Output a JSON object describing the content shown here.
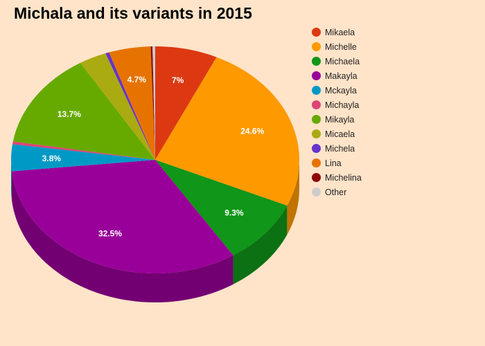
{
  "chart_data": {
    "type": "pie",
    "title": "Michala and its variants in 2015",
    "slices": [
      {
        "name": "Mikaela",
        "value": 7.0,
        "label": "7%",
        "color": "#DC3912",
        "side": "#A62B0E"
      },
      {
        "name": "Michelle",
        "value": 24.6,
        "label": "24.6%",
        "color": "#FF9900",
        "side": "#C07300"
      },
      {
        "name": "Michaela",
        "value": 9.3,
        "label": "9.3%",
        "color": "#109618",
        "side": "#0C7112"
      },
      {
        "name": "Makayla",
        "value": 32.5,
        "label": "32.5%",
        "color": "#990099",
        "side": "#730073"
      },
      {
        "name": "Mckayla",
        "value": 3.8,
        "label": "3.8%",
        "color": "#0099C6",
        "side": "#007395"
      },
      {
        "name": "Michayla",
        "value": 0.4,
        "label": "",
        "color": "#DD4477",
        "side": "#A63359"
      },
      {
        "name": "Mikayla",
        "value": 13.7,
        "label": "13.7%",
        "color": "#66AA00",
        "side": "#4D8000"
      },
      {
        "name": "Micaela",
        "value": 3.1,
        "label": "",
        "color": "#AAAA11",
        "side": "#80800D"
      },
      {
        "name": "Michela",
        "value": 0.4,
        "label": "",
        "color": "#6633CC",
        "side": "#4D2699"
      },
      {
        "name": "Lina",
        "value": 4.7,
        "label": "4.7%",
        "color": "#E67300",
        "side": "#AD5600"
      },
      {
        "name": "Michelina",
        "value": 0.2,
        "label": "",
        "color": "#8B0707",
        "side": "#680505"
      },
      {
        "name": "Other",
        "value": 0.3,
        "label": "",
        "color": "#CCCCCC",
        "side": "#999999"
      }
    ],
    "legend_position": "right"
  }
}
